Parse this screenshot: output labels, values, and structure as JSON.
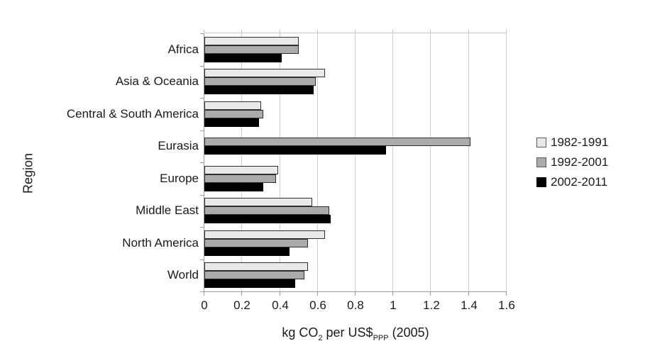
{
  "chart_data": {
    "type": "bar",
    "orientation": "horizontal",
    "title": "",
    "ylabel": "Region",
    "xlabel": "kg CO2 per US$PPP (2005)",
    "xlabel_parts": {
      "prefix": "kg CO",
      "sub1": "2",
      "mid": " per US$",
      "sub2": "PPP",
      "suffix": " (2005)"
    },
    "categories": [
      "Africa",
      "Asia & Oceania",
      "Central & South America",
      "Eurasia",
      "Europe",
      "Middle East",
      "North America",
      "World"
    ],
    "series": [
      {
        "name": "1982-1991",
        "color": "#e9e9e9",
        "values": [
          0.5,
          0.64,
          0.3,
          null,
          0.39,
          0.57,
          0.64,
          0.55
        ]
      },
      {
        "name": "1992-2001",
        "color": "#ababab",
        "values": [
          0.5,
          0.59,
          0.31,
          1.41,
          0.38,
          0.66,
          0.55,
          0.53
        ]
      },
      {
        "name": "2002-2011",
        "color": "#000000",
        "values": [
          0.41,
          0.58,
          0.29,
          0.96,
          0.31,
          0.67,
          0.45,
          0.48
        ]
      }
    ],
    "xlim": [
      0,
      1.6
    ],
    "xticks": [
      0,
      0.2,
      0.4,
      0.6,
      0.8,
      1,
      1.2,
      1.4,
      1.6
    ],
    "xtick_labels": [
      "0",
      "0.2",
      "0.4",
      "0.6",
      "0.8",
      "1",
      "1.2",
      "1.4",
      "1.6"
    ],
    "grid": true,
    "legend_position": "right",
    "colors": {
      "gridline": "#cdcdcd",
      "axis": "#9b9b9b",
      "text": "#1a1a1a",
      "background": "#ffffff",
      "bar_border": "#2e2e2e"
    }
  }
}
